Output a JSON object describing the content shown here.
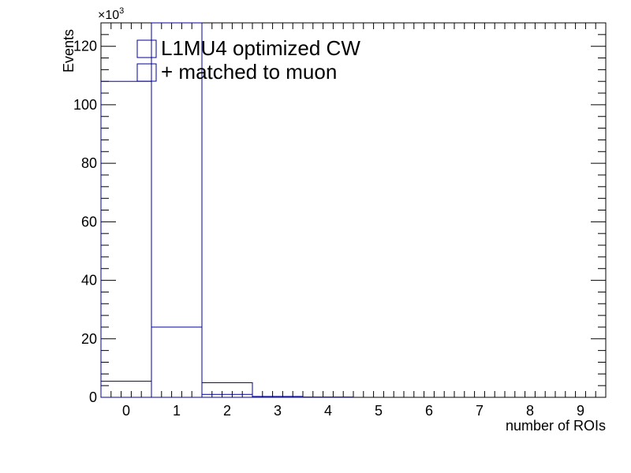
{
  "chart_data": {
    "type": "bar",
    "xlabel": "number of ROIs",
    "ylabel": "Events",
    "y_multiplier_base": "×10",
    "y_multiplier_exp": "3",
    "x_range": [
      -0.5,
      9.5
    ],
    "ylim": [
      0,
      128
    ],
    "x_ticks": [
      "0",
      "1",
      "2",
      "3",
      "4",
      "5",
      "6",
      "7",
      "8",
      "9"
    ],
    "y_ticks": [
      "0",
      "20",
      "40",
      "60",
      "80",
      "100",
      "120"
    ],
    "categories": [
      0,
      1,
      2,
      3,
      4,
      5,
      6,
      7,
      8,
      9
    ],
    "series": [
      {
        "name": "L1MU4 optimized CW",
        "values": [
          108,
          128,
          1,
          0,
          0,
          0,
          0,
          0,
          0,
          0
        ]
      },
      {
        "name": "+ matched to muon",
        "values": [
          5.5,
          24,
          5,
          0.3,
          0.1,
          0,
          0,
          0,
          0,
          0
        ]
      }
    ],
    "grid": false,
    "legend_position": "top-left",
    "colors": {
      "series": "#000099",
      "axis": "#000000"
    }
  }
}
